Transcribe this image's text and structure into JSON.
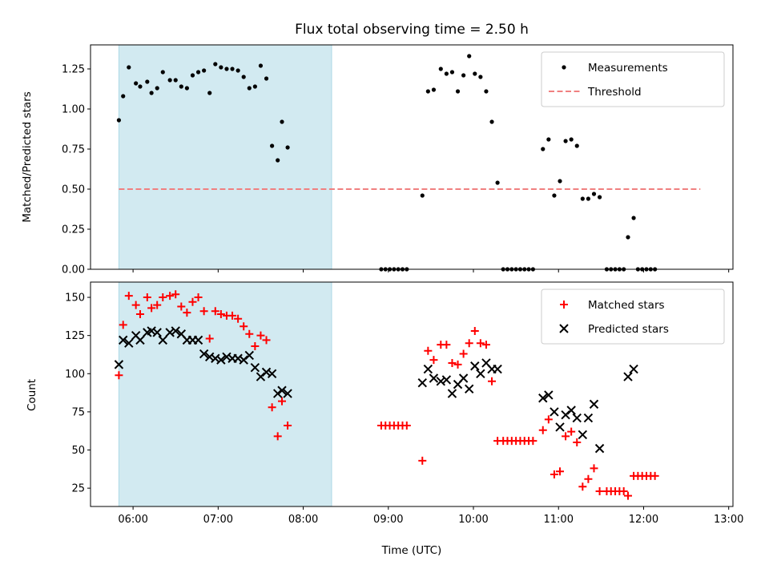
{
  "figure": {
    "title": "Flux total observing time = 2.50 h",
    "xlabel": "Time (UTC)"
  },
  "colors": {
    "shade": "#add8e6",
    "measurement": "#000000",
    "threshold": "#f08080",
    "matched": "#ff0000",
    "predicted": "#000000"
  },
  "chart_data": [
    {
      "type": "scatter",
      "panel": "top",
      "ylabel": "Matched/Predicted stars",
      "xlim": [
        "05:30",
        "13:03"
      ],
      "ylim": [
        0,
        1.4
      ],
      "xticks": [
        "06:00",
        "07:00",
        "08:00",
        "09:00",
        "10:00",
        "11:00",
        "12:00",
        "13:00"
      ],
      "yticks": [
        "0.00",
        "0.25",
        "0.50",
        "0.75",
        "1.00",
        "1.25"
      ],
      "shaded_span": [
        "05:50",
        "08:20"
      ],
      "legend_position": "upper right",
      "legend": [
        "Measurements",
        "Threshold"
      ],
      "threshold": {
        "value": 0.5,
        "x": [
          "05:50",
          "12:40"
        ]
      },
      "series": [
        {
          "name": "Measurements",
          "marker": "dot",
          "points": [
            [
              "05:50",
              0.93
            ],
            [
              "05:53",
              1.08
            ],
            [
              "05:57",
              1.26
            ],
            [
              "06:02",
              1.16
            ],
            [
              "06:05",
              1.14
            ],
            [
              "06:10",
              1.17
            ],
            [
              "06:13",
              1.1
            ],
            [
              "06:17",
              1.13
            ],
            [
              "06:21",
              1.23
            ],
            [
              "06:26",
              1.18
            ],
            [
              "06:30",
              1.18
            ],
            [
              "06:34",
              1.14
            ],
            [
              "06:38",
              1.13
            ],
            [
              "06:42",
              1.21
            ],
            [
              "06:46",
              1.23
            ],
            [
              "06:50",
              1.24
            ],
            [
              "06:54",
              1.1
            ],
            [
              "06:58",
              1.28
            ],
            [
              "07:02",
              1.26
            ],
            [
              "07:06",
              1.25
            ],
            [
              "07:10",
              1.25
            ],
            [
              "07:14",
              1.24
            ],
            [
              "07:18",
              1.2
            ],
            [
              "07:22",
              1.13
            ],
            [
              "07:26",
              1.14
            ],
            [
              "07:30",
              1.27
            ],
            [
              "07:34",
              1.19
            ],
            [
              "07:38",
              0.77
            ],
            [
              "07:42",
              0.68
            ],
            [
              "07:45",
              0.92
            ],
            [
              "07:49",
              0.76
            ],
            [
              "08:55",
              0.0
            ],
            [
              "08:58",
              0.0
            ],
            [
              "09:01",
              0.0
            ],
            [
              "09:04",
              0.0
            ],
            [
              "09:07",
              0.0
            ],
            [
              "09:10",
              0.0
            ],
            [
              "09:13",
              0.0
            ],
            [
              "09:24",
              0.46
            ],
            [
              "09:28",
              1.11
            ],
            [
              "09:32",
              1.12
            ],
            [
              "09:37",
              1.25
            ],
            [
              "09:41",
              1.22
            ],
            [
              "09:45",
              1.23
            ],
            [
              "09:49",
              1.11
            ],
            [
              "09:53",
              1.21
            ],
            [
              "09:57",
              1.33
            ],
            [
              "10:01",
              1.22
            ],
            [
              "10:05",
              1.2
            ],
            [
              "10:09",
              1.11
            ],
            [
              "10:13",
              0.92
            ],
            [
              "10:17",
              0.54
            ],
            [
              "10:21",
              0.0
            ],
            [
              "10:24",
              0.0
            ],
            [
              "10:27",
              0.0
            ],
            [
              "10:30",
              0.0
            ],
            [
              "10:33",
              0.0
            ],
            [
              "10:36",
              0.0
            ],
            [
              "10:39",
              0.0
            ],
            [
              "10:42",
              0.0
            ],
            [
              "10:49",
              0.75
            ],
            [
              "10:53",
              0.81
            ],
            [
              "10:57",
              0.46
            ],
            [
              "11:01",
              0.55
            ],
            [
              "11:05",
              0.8
            ],
            [
              "11:09",
              0.81
            ],
            [
              "11:13",
              0.77
            ],
            [
              "11:17",
              0.44
            ],
            [
              "11:21",
              0.44
            ],
            [
              "11:25",
              0.47
            ],
            [
              "11:29",
              0.45
            ],
            [
              "11:34",
              0.0
            ],
            [
              "11:37",
              0.0
            ],
            [
              "11:40",
              0.0
            ],
            [
              "11:43",
              0.0
            ],
            [
              "11:46",
              0.0
            ],
            [
              "11:49",
              0.2
            ],
            [
              "11:53",
              0.32
            ],
            [
              "11:56",
              0.0
            ],
            [
              "11:59",
              0.0
            ],
            [
              "12:02",
              0.0
            ],
            [
              "12:05",
              0.0
            ],
            [
              "12:08",
              0.0
            ]
          ]
        }
      ]
    },
    {
      "type": "scatter",
      "panel": "bottom",
      "ylabel": "Count",
      "xlabel": "Time (UTC)",
      "xlim": [
        "05:30",
        "13:03"
      ],
      "ylim": [
        13,
        160
      ],
      "xticks": [
        "06:00",
        "07:00",
        "08:00",
        "09:00",
        "10:00",
        "11:00",
        "12:00",
        "13:00"
      ],
      "yticks": [
        "25",
        "50",
        "75",
        "100",
        "125",
        "150"
      ],
      "shaded_span": [
        "05:50",
        "08:20"
      ],
      "legend_position": "upper right",
      "legend": [
        "Matched stars",
        "Predicted stars"
      ],
      "series": [
        {
          "name": "Matched stars",
          "marker": "plus",
          "points": [
            [
              "05:50",
              99
            ],
            [
              "05:53",
              132
            ],
            [
              "05:57",
              151
            ],
            [
              "06:02",
              145
            ],
            [
              "06:05",
              139
            ],
            [
              "06:10",
              150
            ],
            [
              "06:13",
              143
            ],
            [
              "06:17",
              145
            ],
            [
              "06:21",
              150
            ],
            [
              "06:26",
              151
            ],
            [
              "06:30",
              152
            ],
            [
              "06:34",
              144
            ],
            [
              "06:38",
              140
            ],
            [
              "06:42",
              147
            ],
            [
              "06:46",
              150
            ],
            [
              "06:50",
              141
            ],
            [
              "06:54",
              123
            ],
            [
              "06:58",
              141
            ],
            [
              "07:02",
              139
            ],
            [
              "07:06",
              138
            ],
            [
              "07:10",
              138
            ],
            [
              "07:14",
              136
            ],
            [
              "07:18",
              131
            ],
            [
              "07:22",
              126
            ],
            [
              "07:26",
              118
            ],
            [
              "07:30",
              125
            ],
            [
              "07:34",
              122
            ],
            [
              "07:38",
              78
            ],
            [
              "07:42",
              59
            ],
            [
              "07:45",
              82
            ],
            [
              "07:49",
              66
            ],
            [
              "08:55",
              66
            ],
            [
              "08:58",
              66
            ],
            [
              "09:01",
              66
            ],
            [
              "09:04",
              66
            ],
            [
              "09:07",
              66
            ],
            [
              "09:10",
              66
            ],
            [
              "09:13",
              66
            ],
            [
              "09:24",
              43
            ],
            [
              "09:28",
              115
            ],
            [
              "09:32",
              109
            ],
            [
              "09:37",
              119
            ],
            [
              "09:41",
              119
            ],
            [
              "09:45",
              107
            ],
            [
              "09:49",
              106
            ],
            [
              "09:53",
              113
            ],
            [
              "09:57",
              120
            ],
            [
              "10:01",
              128
            ],
            [
              "10:05",
              120
            ],
            [
              "10:09",
              119
            ],
            [
              "10:13",
              95
            ],
            [
              "10:17",
              56
            ],
            [
              "10:21",
              56
            ],
            [
              "10:24",
              56
            ],
            [
              "10:27",
              56
            ],
            [
              "10:30",
              56
            ],
            [
              "10:33",
              56
            ],
            [
              "10:36",
              56
            ],
            [
              "10:39",
              56
            ],
            [
              "10:42",
              56
            ],
            [
              "10:49",
              63
            ],
            [
              "10:53",
              70
            ],
            [
              "10:57",
              34
            ],
            [
              "11:01",
              36
            ],
            [
              "11:05",
              59
            ],
            [
              "11:09",
              62
            ],
            [
              "11:13",
              55
            ],
            [
              "11:17",
              26
            ],
            [
              "11:21",
              31
            ],
            [
              "11:25",
              38
            ],
            [
              "11:29",
              23
            ],
            [
              "11:34",
              23
            ],
            [
              "11:37",
              23
            ],
            [
              "11:40",
              23
            ],
            [
              "11:43",
              23
            ],
            [
              "11:46",
              23
            ],
            [
              "11:49",
              20
            ],
            [
              "11:53",
              33
            ],
            [
              "11:56",
              33
            ],
            [
              "11:59",
              33
            ],
            [
              "12:02",
              33
            ],
            [
              "12:05",
              33
            ],
            [
              "12:08",
              33
            ]
          ]
        },
        {
          "name": "Predicted stars",
          "marker": "x",
          "points": [
            [
              "05:50",
              106
            ],
            [
              "05:53",
              122
            ],
            [
              "05:57",
              120
            ],
            [
              "06:02",
              125
            ],
            [
              "06:05",
              122
            ],
            [
              "06:10",
              127
            ],
            [
              "06:13",
              128
            ],
            [
              "06:17",
              127
            ],
            [
              "06:21",
              122
            ],
            [
              "06:26",
              127
            ],
            [
              "06:30",
              128
            ],
            [
              "06:34",
              126
            ],
            [
              "06:38",
              122
            ],
            [
              "06:42",
              122
            ],
            [
              "06:46",
              122
            ],
            [
              "06:50",
              113
            ],
            [
              "06:54",
              111
            ],
            [
              "06:58",
              110
            ],
            [
              "07:02",
              109
            ],
            [
              "07:06",
              111
            ],
            [
              "07:10",
              110
            ],
            [
              "07:14",
              110
            ],
            [
              "07:18",
              109
            ],
            [
              "07:22",
              112
            ],
            [
              "07:26",
              104
            ],
            [
              "07:30",
              98
            ],
            [
              "07:34",
              101
            ],
            [
              "07:38",
              100
            ],
            [
              "07:42",
              87
            ],
            [
              "07:45",
              89
            ],
            [
              "07:49",
              87
            ],
            [
              "09:24",
              94
            ],
            [
              "09:28",
              103
            ],
            [
              "09:32",
              97
            ],
            [
              "09:37",
              95
            ],
            [
              "09:41",
              96
            ],
            [
              "09:45",
              87
            ],
            [
              "09:49",
              93
            ],
            [
              "09:53",
              97
            ],
            [
              "09:57",
              90
            ],
            [
              "10:01",
              105
            ],
            [
              "10:05",
              100
            ],
            [
              "10:09",
              107
            ],
            [
              "10:13",
              103
            ],
            [
              "10:17",
              103
            ],
            [
              "10:49",
              84
            ],
            [
              "10:53",
              86
            ],
            [
              "10:57",
              75
            ],
            [
              "11:01",
              65
            ],
            [
              "11:05",
              73
            ],
            [
              "11:09",
              76
            ],
            [
              "11:13",
              71
            ],
            [
              "11:17",
              60
            ],
            [
              "11:21",
              71
            ],
            [
              "11:25",
              80
            ],
            [
              "11:29",
              51
            ],
            [
              "11:49",
              98
            ],
            [
              "11:53",
              103
            ]
          ]
        }
      ]
    }
  ]
}
